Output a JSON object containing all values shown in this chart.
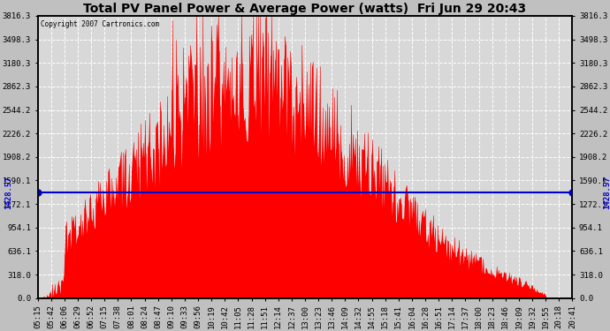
{
  "title": "Total PV Panel Power & Average Power (watts)  Fri Jun 29 20:43",
  "copyright": "Copyright 2007 Cartronics.com",
  "avg_power": 1428.57,
  "ymax": 3816.3,
  "yticks": [
    0.0,
    318.0,
    636.1,
    954.1,
    1272.1,
    1590.1,
    1908.2,
    2226.2,
    2544.2,
    2862.3,
    3180.3,
    3498.3,
    3816.3
  ],
  "ytick_labels": [
    "0.0",
    "318.0",
    "636.1",
    "954.1",
    "1272.1",
    "1590.1",
    "1908.2",
    "2226.2",
    "2544.2",
    "2862.3",
    "3180.3",
    "3498.3",
    "3816.3"
  ],
  "xtick_labels": [
    "05:15",
    "05:42",
    "06:06",
    "06:29",
    "06:52",
    "07:15",
    "07:38",
    "08:01",
    "08:24",
    "08:47",
    "09:10",
    "09:33",
    "09:56",
    "10:19",
    "10:42",
    "11:05",
    "11:28",
    "11:51",
    "12:14",
    "12:37",
    "13:00",
    "13:23",
    "13:46",
    "14:09",
    "14:32",
    "14:55",
    "15:18",
    "15:41",
    "16:04",
    "16:28",
    "16:51",
    "17:14",
    "17:37",
    "18:00",
    "18:23",
    "18:46",
    "19:09",
    "19:32",
    "19:55",
    "20:18",
    "20:41"
  ],
  "bar_color": "#FF0000",
  "avg_line_color": "#0000CC",
  "bg_color": "#C0C0C0",
  "plot_bg_color": "#D8D8D8",
  "grid_color": "#FFFFFF",
  "title_color": "#000000",
  "border_color": "#000000"
}
